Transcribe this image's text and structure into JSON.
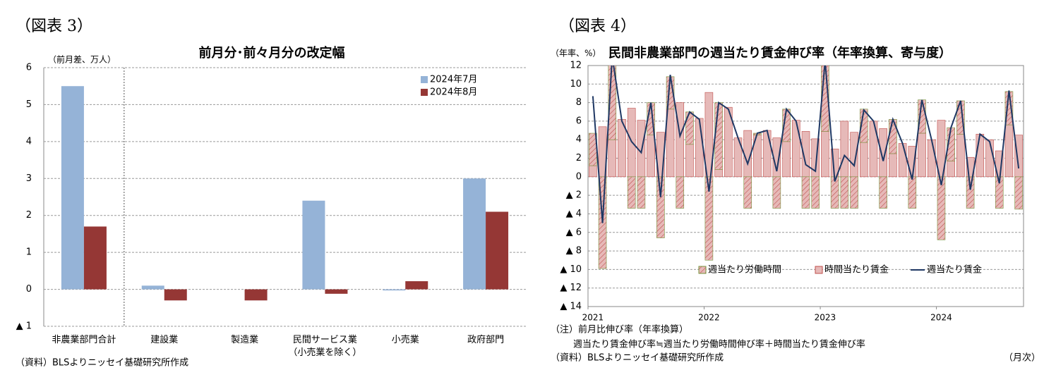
{
  "chart_data": [
    {
      "type": "bar",
      "figure_label": "（図表 3）",
      "title": "前月分･前々月分の改定幅",
      "y_unit_label": "（前月差、万人）",
      "categories": [
        "非農業部門合計",
        "建設業",
        "製造業",
        "民間サービス業\n（小売業を除く）",
        "小売業",
        "政府部門"
      ],
      "series": [
        {
          "name": "2024年7月",
          "color": "#95b3d7",
          "values": [
            5.5,
            0.1,
            0,
            2.4,
            -0.03,
            3.0
          ]
        },
        {
          "name": "2024年8月",
          "color": "#953735",
          "values": [
            1.7,
            -0.3,
            -0.3,
            -0.12,
            0.22,
            2.1
          ]
        }
      ],
      "ylim": [
        -1,
        6
      ],
      "yticks": [
        {
          "value": -1,
          "label": "▲ 1"
        },
        0,
        1,
        2,
        3,
        4,
        5,
        6
      ],
      "grid": true,
      "source": "（資料）BLSよりニッセイ基礎研究所作成"
    },
    {
      "type": "combo",
      "figure_label": "（図表 4）",
      "title": "民間非農業部門の週当たり賃金伸び率（年率換算、寄与度）",
      "y_unit_label": "（年率、%）",
      "x_unit_label": "（月次）",
      "categories": [
        "2021",
        null,
        null,
        null,
        null,
        null,
        null,
        null,
        null,
        null,
        null,
        null,
        "2022",
        null,
        null,
        null,
        null,
        null,
        null,
        null,
        null,
        null,
        null,
        null,
        "2023",
        null,
        null,
        null,
        null,
        null,
        null,
        null,
        null,
        null,
        null,
        null,
        "2024",
        null,
        null,
        null,
        null,
        null,
        null,
        null,
        null
      ],
      "series": [
        {
          "name": "週当たり労働時間",
          "kind": "bar",
          "color": "#d7e4bd",
          "edgecolor": "#77933c",
          "values": [
            3.5,
            -9.9,
            9.0,
            0,
            -3.4,
            -3.4,
            3.5,
            -6.6,
            3.5,
            -3.4,
            3.5,
            0,
            -9.0,
            7.2,
            0,
            0,
            -3.4,
            0.2,
            0,
            -3.4,
            3.5,
            0,
            -3.4,
            -3.4,
            7.2,
            -3.4,
            -3.4,
            -3.4,
            3.6,
            0,
            -3.4,
            3.7,
            0,
            -3.4,
            3.6,
            0,
            -6.8,
            3.6,
            3.6,
            -3.4,
            0,
            0,
            -3.4,
            3.6,
            -3.5
          ]
        },
        {
          "name": "時間当たり賃金",
          "kind": "bar",
          "color": "#e6b9b8",
          "edgecolor": "#c0504d",
          "values": [
            1.2,
            5.4,
            4.0,
            6.2,
            7.4,
            6.1,
            4.5,
            4.8,
            7.3,
            8.0,
            3.5,
            6.3,
            9.1,
            0.8,
            7.5,
            4.2,
            5.0,
            4.5,
            5.0,
            4.2,
            3.8,
            6.1,
            4.9,
            4.1,
            4.9,
            3.0,
            6.0,
            4.8,
            3.7,
            6.0,
            5.2,
            2.5,
            3.6,
            3.3,
            4.7,
            4.0,
            6.1,
            1.7,
            4.6,
            2.1,
            4.6,
            4.0,
            2.8,
            5.6,
            4.5
          ]
        },
        {
          "name": "週当たり賃金",
          "kind": "line",
          "color": "#1f3864",
          "values": [
            8.7,
            -5.0,
            13.0,
            6.0,
            3.8,
            2.6,
            8.0,
            -2.2,
            11.0,
            4.4,
            7.0,
            6.2,
            -1.6,
            8.0,
            7.3,
            4.2,
            1.4,
            4.7,
            5.0,
            0.6,
            7.3,
            6.0,
            1.3,
            0.6,
            12.5,
            -0.5,
            2.3,
            1.2,
            7.2,
            6.0,
            1.7,
            6.2,
            3.6,
            -0.3,
            8.3,
            4.0,
            -0.9,
            5.3,
            8.2,
            -1.4,
            4.6,
            3.8,
            -0.7,
            9.3,
            0.9
          ]
        }
      ],
      "ylim": [
        -14,
        12
      ],
      "yticks": [
        {
          "value": -14,
          "label": "▲ 14"
        },
        {
          "value": -12,
          "label": "▲ 12"
        },
        {
          "value": -10,
          "label": "▲ 10"
        },
        {
          "value": -8,
          "label": "▲ 8"
        },
        {
          "value": -6,
          "label": "▲ 6"
        },
        {
          "value": -4,
          "label": "▲ 4"
        },
        {
          "value": -2,
          "label": "▲ 2"
        },
        0,
        2,
        4,
        6,
        8,
        10,
        12
      ],
      "grid": true,
      "notes": [
        "（注）前月比伸び率（年率換算）",
        "週当たり賃金伸び率≒週当たり労働時間伸び率＋時間当たり賃金伸び率"
      ],
      "source": "（資料）BLSよりニッセイ基礎研究所作成"
    }
  ]
}
